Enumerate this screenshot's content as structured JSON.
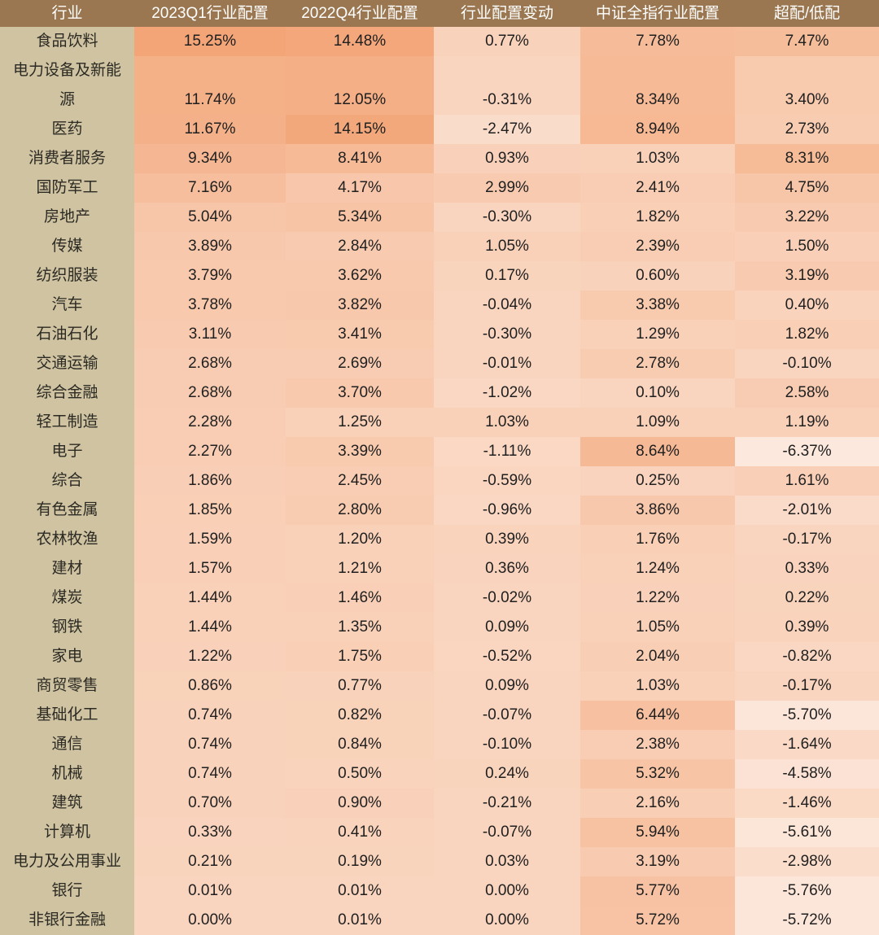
{
  "chart_data": {
    "type": "heatmap",
    "description_note": "",
    "columns": [
      "行业",
      "2023Q1行业配置",
      "2022Q4行业配置",
      "行业配置变动",
      "中证全指行业配置",
      "超配/低配"
    ],
    "rows": [
      {
        "industry": "食品饮料",
        "values": [
          "15.25%",
          "14.48%",
          "0.77%",
          "7.78%",
          "7.47%"
        ]
      },
      {
        "industry": "电力设备及新能源",
        "values": [
          "11.74%",
          "12.05%",
          "-0.31%",
          "8.34%",
          "3.40%"
        ]
      },
      {
        "industry": "医药",
        "values": [
          "11.67%",
          "14.15%",
          "-2.47%",
          "8.94%",
          "2.73%"
        ]
      },
      {
        "industry": "消费者服务",
        "values": [
          "9.34%",
          "8.41%",
          "0.93%",
          "1.03%",
          "8.31%"
        ]
      },
      {
        "industry": "国防军工",
        "values": [
          "7.16%",
          "4.17%",
          "2.99%",
          "2.41%",
          "4.75%"
        ]
      },
      {
        "industry": "房地产",
        "values": [
          "5.04%",
          "5.34%",
          "-0.30%",
          "1.82%",
          "3.22%"
        ]
      },
      {
        "industry": "传媒",
        "values": [
          "3.89%",
          "2.84%",
          "1.05%",
          "2.39%",
          "1.50%"
        ]
      },
      {
        "industry": "纺织服装",
        "values": [
          "3.79%",
          "3.62%",
          "0.17%",
          "0.60%",
          "3.19%"
        ]
      },
      {
        "industry": "汽车",
        "values": [
          "3.78%",
          "3.82%",
          "-0.04%",
          "3.38%",
          "0.40%"
        ]
      },
      {
        "industry": "石油石化",
        "values": [
          "3.11%",
          "3.41%",
          "-0.30%",
          "1.29%",
          "1.82%"
        ]
      },
      {
        "industry": "交通运输",
        "values": [
          "2.68%",
          "2.69%",
          "-0.01%",
          "2.78%",
          "-0.10%"
        ]
      },
      {
        "industry": "综合金融",
        "values": [
          "2.68%",
          "3.70%",
          "-1.02%",
          "0.10%",
          "2.58%"
        ]
      },
      {
        "industry": "轻工制造",
        "values": [
          "2.28%",
          "1.25%",
          "1.03%",
          "1.09%",
          "1.19%"
        ]
      },
      {
        "industry": "电子",
        "values": [
          "2.27%",
          "3.39%",
          "-1.11%",
          "8.64%",
          "-6.37%"
        ]
      },
      {
        "industry": "综合",
        "values": [
          "1.86%",
          "2.45%",
          "-0.59%",
          "0.25%",
          "1.61%"
        ]
      },
      {
        "industry": "有色金属",
        "values": [
          "1.85%",
          "2.80%",
          "-0.96%",
          "3.86%",
          "-2.01%"
        ]
      },
      {
        "industry": "农林牧渔",
        "values": [
          "1.59%",
          "1.20%",
          "0.39%",
          "1.76%",
          "-0.17%"
        ]
      },
      {
        "industry": "建材",
        "values": [
          "1.57%",
          "1.21%",
          "0.36%",
          "1.24%",
          "0.33%"
        ]
      },
      {
        "industry": "煤炭",
        "values": [
          "1.44%",
          "1.46%",
          "-0.02%",
          "1.22%",
          "0.22%"
        ]
      },
      {
        "industry": "钢铁",
        "values": [
          "1.44%",
          "1.35%",
          "0.09%",
          "1.05%",
          "0.39%"
        ]
      },
      {
        "industry": "家电",
        "values": [
          "1.22%",
          "1.75%",
          "-0.52%",
          "2.04%",
          "-0.82%"
        ]
      },
      {
        "industry": "商贸零售",
        "values": [
          "0.86%",
          "0.77%",
          "0.09%",
          "1.03%",
          "-0.17%"
        ]
      },
      {
        "industry": "基础化工",
        "values": [
          "0.74%",
          "0.82%",
          "-0.07%",
          "6.44%",
          "-5.70%"
        ]
      },
      {
        "industry": "通信",
        "values": [
          "0.74%",
          "0.84%",
          "-0.10%",
          "2.38%",
          "-1.64%"
        ]
      },
      {
        "industry": "机械",
        "values": [
          "0.74%",
          "0.50%",
          "0.24%",
          "5.32%",
          "-4.58%"
        ]
      },
      {
        "industry": "建筑",
        "values": [
          "0.70%",
          "0.90%",
          "-0.21%",
          "2.16%",
          "-1.46%"
        ]
      },
      {
        "industry": "计算机",
        "values": [
          "0.33%",
          "0.41%",
          "-0.07%",
          "5.94%",
          "-5.61%"
        ]
      },
      {
        "industry": "电力及公用事业",
        "values": [
          "0.21%",
          "0.19%",
          "0.03%",
          "3.19%",
          "-2.98%"
        ]
      },
      {
        "industry": "银行",
        "values": [
          "0.01%",
          "0.01%",
          "0.00%",
          "5.77%",
          "-5.76%"
        ]
      },
      {
        "industry": "非银行金融",
        "values": [
          "0.00%",
          "0.01%",
          "0.00%",
          "5.72%",
          "-5.72%"
        ]
      }
    ],
    "heatmap": {
      "min_value": -6.37,
      "max_value": 15.25,
      "min_color": "#FCE8DC",
      "max_color": "#F3A577"
    },
    "colors": {
      "header_bg": "#9A7750",
      "header_text": "#FFFFFF",
      "industry_col_bg": "#D0C3A2",
      "industry_text": "#2B2A23",
      "body_text": "#1F1F1F"
    },
    "grid": false,
    "legend_position": "none"
  }
}
